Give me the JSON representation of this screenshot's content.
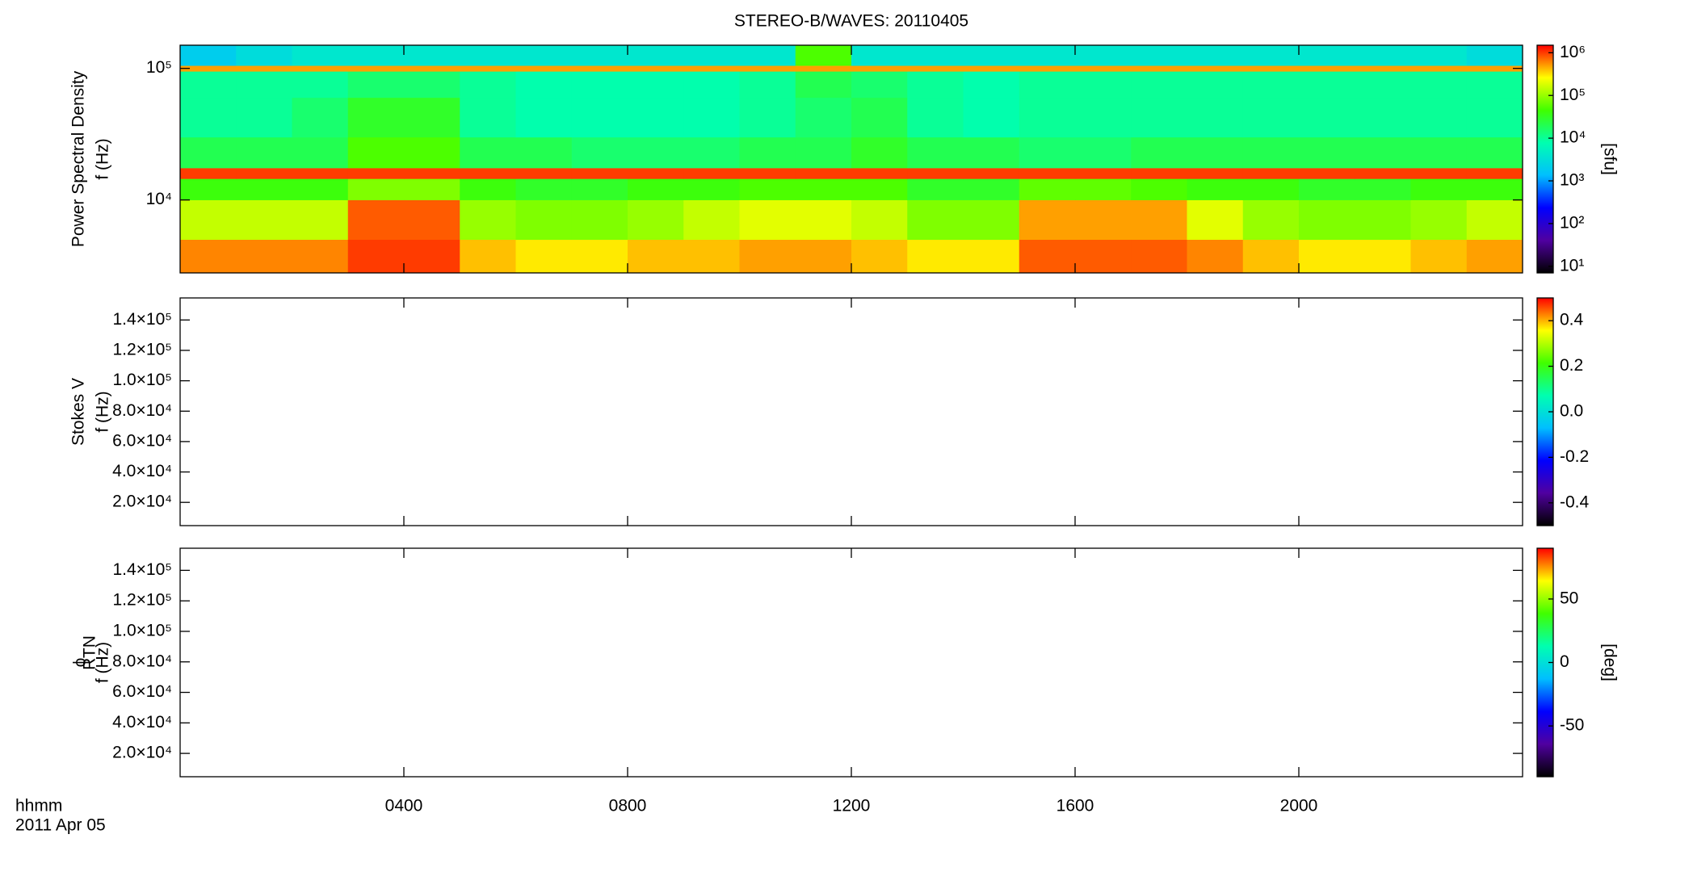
{
  "chart_data": [
    {
      "type": "heatmap",
      "title": "STEREO-B/WAVES: 20110405",
      "ylabel": [
        "Power Spectral Density",
        "f (Hz)"
      ],
      "xlim": [
        0,
        24
      ],
      "xticks": [
        4,
        8,
        12,
        16,
        20
      ],
      "ylog": true,
      "ylim": [
        2790,
        150000
      ],
      "yticks": [
        {
          "value": 10000,
          "label": "10⁴"
        },
        {
          "value": 100000,
          "label": "10⁵"
        }
      ],
      "colormap": [
        "#000000",
        "#5000a0",
        "#0000ff",
        "#00bfff",
        "#00ffb0",
        "#40ff00",
        "#ffff00",
        "#ff0000"
      ],
      "x_edges": [
        0,
        1,
        2,
        3,
        4,
        5,
        6,
        7,
        8,
        9,
        10,
        11,
        12,
        13,
        14,
        15,
        16,
        17,
        18,
        19,
        20,
        21,
        22,
        23,
        24
      ],
      "y_edges": [
        2790,
        5000,
        10000,
        14500,
        17500,
        30000,
        60000,
        95000,
        105000,
        150000
      ],
      "z": [
        [
          600000,
          600000,
          600000,
          1000000,
          1000000,
          400000,
          300000,
          300000,
          400000,
          400000,
          500000,
          500000,
          400000,
          300000,
          300000,
          800000,
          800000,
          800000,
          600000,
          400000,
          300000,
          300000,
          400000,
          500000
        ],
        [
          150000,
          150000,
          150000,
          800000,
          800000,
          100000,
          80000,
          80000,
          100000,
          150000,
          200000,
          200000,
          150000,
          80000,
          80000,
          500000,
          500000,
          500000,
          200000,
          100000,
          80000,
          80000,
          100000,
          150000
        ],
        [
          40000,
          40000,
          40000,
          80000,
          80000,
          40000,
          30000,
          30000,
          40000,
          40000,
          50000,
          50000,
          50000,
          30000,
          30000,
          60000,
          60000,
          50000,
          40000,
          40000,
          30000,
          30000,
          40000,
          40000
        ],
        [
          1000000,
          1000000,
          1000000,
          1000000,
          1000000,
          1000000,
          1000000,
          1000000,
          1000000,
          1000000,
          1000000,
          1000000,
          1000000,
          1000000,
          1000000,
          1000000,
          1000000,
          1000000,
          1000000,
          1000000,
          1000000,
          1000000,
          1000000,
          1000000
        ],
        [
          20000,
          20000,
          20000,
          50000,
          50000,
          20000,
          20000,
          15000,
          15000,
          15000,
          20000,
          20000,
          30000,
          20000,
          20000,
          15000,
          15000,
          20000,
          20000,
          20000,
          20000,
          20000,
          20000,
          20000
        ],
        [
          10000,
          10000,
          15000,
          30000,
          30000,
          10000,
          8000,
          8000,
          8000,
          8000,
          10000,
          15000,
          20000,
          10000,
          8000,
          10000,
          10000,
          10000,
          10000,
          10000,
          10000,
          10000,
          10000,
          10000
        ],
        [
          10000,
          10000,
          10000,
          15000,
          15000,
          10000,
          8000,
          8000,
          8000,
          8000,
          10000,
          20000,
          15000,
          10000,
          8000,
          10000,
          10000,
          10000,
          10000,
          10000,
          10000,
          10000,
          10000,
          10000
        ],
        [
          500000,
          500000,
          500000,
          500000,
          500000,
          500000,
          500000,
          500000,
          500000,
          500000,
          500000,
          500000,
          500000,
          500000,
          500000,
          500000,
          500000,
          500000,
          500000,
          500000,
          500000,
          500000,
          500000,
          500000
        ],
        [
          2000,
          3000,
          4000,
          4000,
          4000,
          4000,
          4000,
          4000,
          4000,
          4000,
          4000,
          50000,
          4000,
          4000,
          4000,
          4000,
          4000,
          4000,
          4000,
          4000,
          4000,
          4000,
          4000,
          3000
        ]
      ],
      "colorbar": {
        "log": true,
        "zlim": [
          7,
          1500000
        ],
        "label": "[sfu]",
        "zticks": [
          {
            "value": 10,
            "label": "10¹"
          },
          {
            "value": 100,
            "label": "10²"
          },
          {
            "value": 1000,
            "label": "10³"
          },
          {
            "value": 10000,
            "label": "10⁴"
          },
          {
            "value": 100000,
            "label": "10⁵"
          },
          {
            "value": 1000000,
            "label": "10⁶"
          }
        ]
      }
    },
    {
      "type": "heatmap",
      "ylabel": [
        "Stokes V",
        "f (Hz)"
      ],
      "xlim": [
        0,
        24
      ],
      "xticks": [
        4,
        8,
        12,
        16,
        20
      ],
      "ylog": false,
      "ylim": [
        4700,
        154500
      ],
      "yticks": [
        {
          "value": 20000,
          "label": "2.0×10⁴"
        },
        {
          "value": 40000,
          "label": "4.0×10⁴"
        },
        {
          "value": 60000,
          "label": "6.0×10⁴"
        },
        {
          "value": 80000,
          "label": "8.0×10⁴"
        },
        {
          "value": 100000,
          "label": "1.0×10⁵"
        },
        {
          "value": 120000,
          "label": "1.2×10⁵"
        },
        {
          "value": 140000,
          "label": "1.4×10⁵"
        }
      ],
      "colorbar": {
        "log": false,
        "zlim": [
          -0.5,
          0.5
        ],
        "zticks": [
          -0.4,
          -0.2,
          {
            "value": 0,
            "label": "0.0"
          },
          0.2,
          0.4
        ]
      }
    },
    {
      "type": "heatmap",
      "ylabel": [
        "ϕ",
        "f (Hz)"
      ],
      "ylabel_sub": "RTN",
      "xlabel": "hhmm",
      "date_label": "2011 Apr 05",
      "xlim": [
        0,
        24
      ],
      "xticks": [
        {
          "value": 4,
          "label": "0400"
        },
        {
          "value": 8,
          "label": "0800"
        },
        {
          "value": 12,
          "label": "1200"
        },
        {
          "value": 16,
          "label": "1600"
        },
        {
          "value": 20,
          "label": "2000"
        }
      ],
      "ylog": false,
      "ylim": [
        4700,
        154500
      ],
      "yticks": [
        {
          "value": 20000,
          "label": "2.0×10⁴"
        },
        {
          "value": 40000,
          "label": "4.0×10⁴"
        },
        {
          "value": 60000,
          "label": "6.0×10⁴"
        },
        {
          "value": 80000,
          "label": "8.0×10⁴"
        },
        {
          "value": 100000,
          "label": "1.0×10⁵"
        },
        {
          "value": 120000,
          "label": "1.2×10⁵"
        },
        {
          "value": 140000,
          "label": "1.4×10⁵"
        }
      ],
      "colorbar": {
        "log": false,
        "zlim": [
          -90,
          90
        ],
        "label": "[deg]",
        "zticks": [
          -50,
          0,
          50
        ]
      }
    }
  ]
}
